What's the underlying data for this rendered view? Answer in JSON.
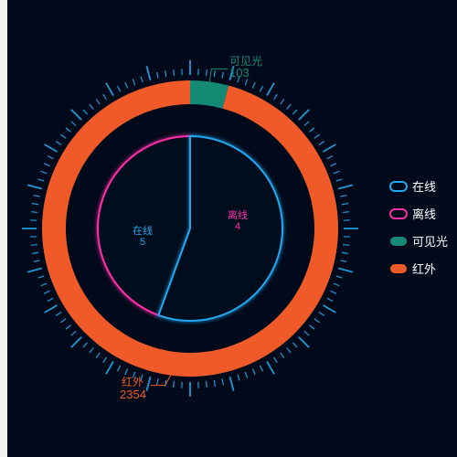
{
  "chart_data": [
    {
      "type": "pie",
      "name": "outer-ring",
      "slices": [
        {
          "label": "可见光",
          "value": 103,
          "color": "#148a74"
        },
        {
          "label": "红外",
          "value": 2354,
          "color": "#f05a28"
        }
      ]
    },
    {
      "type": "pie",
      "name": "inner-status",
      "slices": [
        {
          "label": "在线",
          "value": 5,
          "color": "#21a7f0"
        },
        {
          "label": "离线",
          "value": 4,
          "color": "#ff2fa8"
        }
      ]
    }
  ],
  "legend": [
    {
      "label": "在线",
      "color": "#21a7f0",
      "style": "outline"
    },
    {
      "label": "离线",
      "color": "#ff2fa8",
      "style": "outline"
    },
    {
      "label": "可见光",
      "color": "#148a74",
      "style": "filled"
    },
    {
      "label": "红外",
      "color": "#f05a28",
      "style": "filled"
    }
  ]
}
